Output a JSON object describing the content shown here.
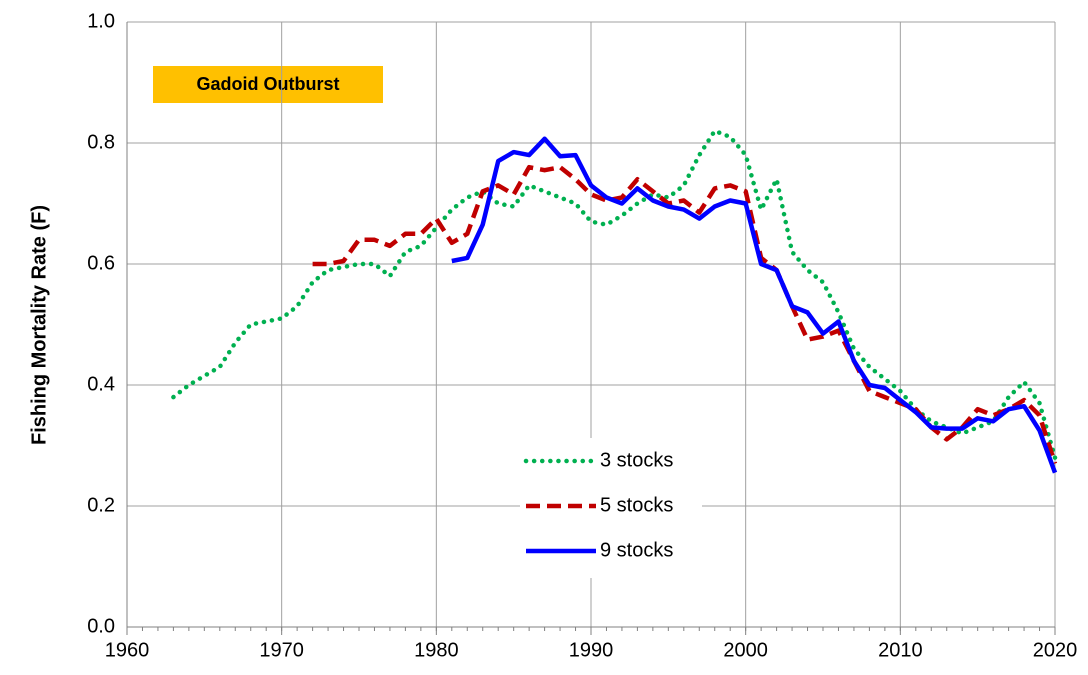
{
  "chart_data": {
    "type": "line",
    "y_label": "Fishing Mortality Rate (F)",
    "annotation": "Gadoid Outburst",
    "xlim": [
      1960,
      2020
    ],
    "xticks": [
      1960,
      1970,
      1980,
      1990,
      2000,
      2010,
      2020
    ],
    "ylim": [
      0,
      1
    ],
    "yticks": [
      {
        "value": 0,
        "label": "0.0"
      },
      0.2,
      0.4,
      0.6,
      0.8,
      {
        "value": 1,
        "label": "1.0"
      }
    ],
    "grid": true,
    "legend": "lower center",
    "series": [
      {
        "name": "3 stocks",
        "color": "#00b050",
        "style": "dotted",
        "x": [
          1963,
          1964,
          1965,
          1966,
          1967,
          1968,
          1969,
          1970,
          1971,
          1972,
          1973,
          1974,
          1975,
          1976,
          1977,
          1978,
          1979,
          1980,
          1981,
          1982,
          1983,
          1984,
          1985,
          1986,
          1987,
          1988,
          1989,
          1990,
          1991,
          1992,
          1993,
          1994,
          1995,
          1996,
          1997,
          1998,
          1999,
          2000,
          2001,
          2002,
          2003,
          2004,
          2005,
          2006,
          2007,
          2008,
          2009,
          2010,
          2011,
          2012,
          2013,
          2014,
          2015,
          2016,
          2017,
          2018,
          2019,
          2020
        ],
        "values": [
          0.38,
          0.4,
          0.415,
          0.43,
          0.47,
          0.5,
          0.505,
          0.51,
          0.53,
          0.57,
          0.59,
          0.595,
          0.6,
          0.6,
          0.58,
          0.62,
          0.63,
          0.66,
          0.69,
          0.71,
          0.72,
          0.7,
          0.695,
          0.73,
          0.72,
          0.71,
          0.7,
          0.67,
          0.665,
          0.68,
          0.7,
          0.715,
          0.71,
          0.73,
          0.78,
          0.82,
          0.81,
          0.78,
          0.69,
          0.74,
          0.62,
          0.59,
          0.57,
          0.52,
          0.46,
          0.43,
          0.41,
          0.39,
          0.36,
          0.34,
          0.33,
          0.32,
          0.33,
          0.34,
          0.38,
          0.405,
          0.37,
          0.28
        ]
      },
      {
        "name": "5 stocks",
        "color": "#c00000",
        "style": "dashed",
        "x": [
          1972,
          1973,
          1974,
          1975,
          1976,
          1977,
          1978,
          1979,
          1980,
          1981,
          1982,
          1983,
          1984,
          1985,
          1986,
          1987,
          1988,
          1989,
          1990,
          1991,
          1992,
          1993,
          1994,
          1995,
          1996,
          1997,
          1998,
          1999,
          2000,
          2001,
          2002,
          2003,
          2004,
          2005,
          2006,
          2007,
          2008,
          2009,
          2010,
          2011,
          2012,
          2013,
          2014,
          2015,
          2016,
          2017,
          2018,
          2019,
          2020
        ],
        "values": [
          0.6,
          0.6,
          0.605,
          0.64,
          0.64,
          0.63,
          0.65,
          0.65,
          0.675,
          0.635,
          0.65,
          0.72,
          0.73,
          0.715,
          0.76,
          0.755,
          0.76,
          0.74,
          0.715,
          0.705,
          0.71,
          0.74,
          0.72,
          0.7,
          0.705,
          0.685,
          0.725,
          0.73,
          0.72,
          0.61,
          0.59,
          0.53,
          0.475,
          0.48,
          0.49,
          0.44,
          0.39,
          0.38,
          0.37,
          0.36,
          0.33,
          0.31,
          0.33,
          0.36,
          0.35,
          0.36,
          0.375,
          0.35,
          0.27
        ]
      },
      {
        "name": "9 stocks",
        "color": "#0000ff",
        "style": "solid",
        "x": [
          1981,
          1982,
          1983,
          1984,
          1985,
          1986,
          1987,
          1988,
          1989,
          1990,
          1991,
          1992,
          1993,
          1994,
          1995,
          1996,
          1997,
          1998,
          1999,
          2000,
          2001,
          2002,
          2003,
          2004,
          2005,
          2006,
          2007,
          2008,
          2009,
          2010,
          2011,
          2012,
          2013,
          2014,
          2015,
          2016,
          2017,
          2018,
          2019,
          2020
        ],
        "values": [
          0.605,
          0.61,
          0.665,
          0.77,
          0.785,
          0.78,
          0.807,
          0.778,
          0.78,
          0.73,
          0.71,
          0.7,
          0.725,
          0.705,
          0.695,
          0.69,
          0.675,
          0.695,
          0.705,
          0.7,
          0.6,
          0.59,
          0.53,
          0.52,
          0.485,
          0.505,
          0.44,
          0.4,
          0.395,
          0.375,
          0.355,
          0.33,
          0.328,
          0.328,
          0.345,
          0.34,
          0.36,
          0.365,
          0.325,
          0.255
        ]
      }
    ]
  }
}
